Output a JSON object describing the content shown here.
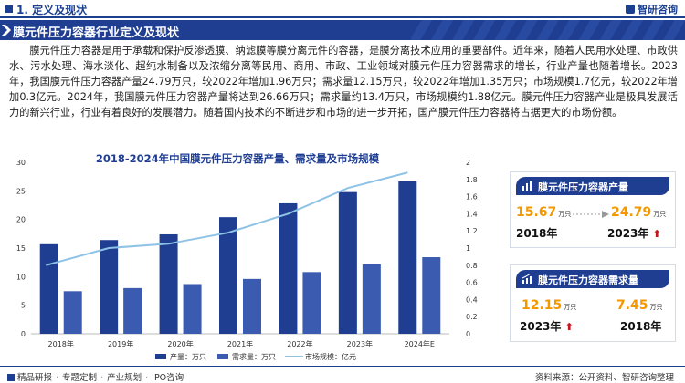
{
  "header": {
    "section_title": "1. 定义及现状",
    "brand": "智研咨询"
  },
  "banner": {
    "title": "膜元件压力容器行业定义及现状"
  },
  "paragraph": "膜元件压力容器是用于承载和保护反渗透膜、纳滤膜等膜分离元件的容器，是膜分离技术应用的重要部件。近年来，随着人民用水处理、市政供水、污水处理、海水淡化、超纯水制备以及浓缩分离等民用、商用、市政、工业领域对膜元件压力容器需求的增长，行业产量也随着增长。2023年，我国膜元件压力容器产量24.79万只，较2022年增加1.96万只；需求量12.15万只，较2022年增加1.35万只；市场规模1.7亿元，较2022年增加0.3亿元。2024年，我国膜元件压力容器产量将达到26.66万只；需求量约13.4万只，市场规模约1.88亿元。膜元件压力容器产业是极具发展活力的新兴行业，行业有着良好的发展潜力。随着国内技术的不断进步和市场的进一步开拓，国产膜元件压力容器将占据更大的市场份额。",
  "chart_data": {
    "type": "bar",
    "title": "2018-2024年中国膜元件压力容器产量、需求量及市场规模",
    "categories": [
      "2018年",
      "2019年",
      "2020年",
      "2021年",
      "2022年",
      "2023年",
      "2024年E"
    ],
    "series": [
      {
        "name": "产量：万只",
        "type": "bar",
        "axis": "left",
        "color": "#1f3e92",
        "values": [
          15.67,
          16.4,
          17.4,
          20.4,
          22.83,
          24.79,
          26.66
        ]
      },
      {
        "name": "需求量：万只",
        "type": "bar",
        "axis": "left",
        "color": "#3a5bb0",
        "values": [
          7.45,
          8.0,
          8.7,
          9.6,
          10.8,
          12.15,
          13.4
        ]
      },
      {
        "name": "市场规模：亿元",
        "type": "line",
        "axis": "right",
        "color": "#8fc3e6",
        "values": [
          0.8,
          1.0,
          1.05,
          1.18,
          1.4,
          1.7,
          1.88
        ]
      }
    ],
    "left_axis": {
      "ticks": [
        "0",
        "5",
        "10",
        "15",
        "20",
        "25",
        "30"
      ],
      "ylim": [
        0,
        30
      ]
    },
    "right_axis": {
      "ticks": [
        "0",
        "0.2",
        "0.4",
        "0.6",
        "0.8",
        "1",
        "1.2",
        "1.4",
        "1.6",
        "1.8",
        "2"
      ],
      "ylim": [
        0,
        2
      ]
    },
    "legend_position": "bottom",
    "legend": [
      "产量：万只",
      "需求量：万只",
      "市场规模：亿元"
    ]
  },
  "card_output": {
    "title": "膜元件压力容器产量",
    "left_value": "15.67",
    "left_unit": "万只",
    "left_year": "2018年",
    "right_value": "24.79",
    "right_unit": "万只",
    "right_year": "2023年",
    "arrow": "⬆"
  },
  "card_demand": {
    "title": "膜元件压力容器需求量",
    "left_value": "12.15",
    "left_unit": "万只",
    "left_year": "2023年",
    "right_value": "7.45",
    "right_unit": "万只",
    "right_year": "2018年",
    "arrow": "⬆"
  },
  "footer": {
    "left": "精品研报",
    "items": [
      "专题定制",
      "产业规划",
      "IPO咨询"
    ],
    "source": "资料来源：公开资料、智研咨询整理"
  }
}
